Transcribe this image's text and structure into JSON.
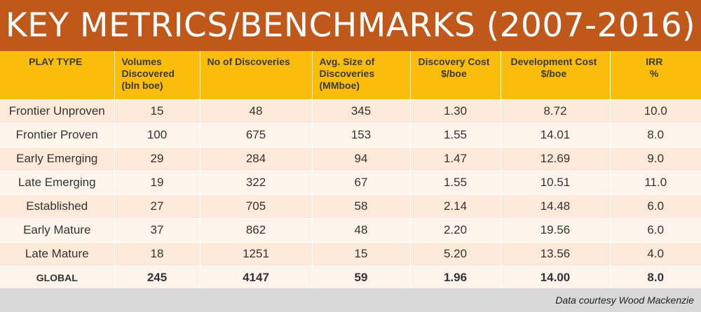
{
  "title": "KEY METRICS/BENCHMARKS (2007-2016)",
  "headers": [
    [
      "PLAY TYPE"
    ],
    [
      "Volumes",
      "Discovered",
      "(bln boe)"
    ],
    [
      "No of Discoveries"
    ],
    [
      "Avg. Size of",
      "Discoveries",
      "(MMboe)"
    ],
    [
      "Discovery Cost",
      "$/boe"
    ],
    [
      "Development Cost",
      "$/boe"
    ],
    [
      "IRR",
      "%"
    ]
  ],
  "rows": [
    [
      "Frontier Unproven",
      "15",
      "48",
      "345",
      "1.30",
      "8.72",
      "10.0"
    ],
    [
      "Frontier Proven",
      "100",
      "675",
      "153",
      "1.55",
      "14.01",
      "8.0"
    ],
    [
      "Early Emerging",
      "29",
      "284",
      "94",
      "1.47",
      "12.69",
      "9.0"
    ],
    [
      "Late Emerging",
      "19",
      "322",
      "67",
      "1.55",
      "10.51",
      "11.0"
    ],
    [
      "Established",
      "27",
      "705",
      "58",
      "2.14",
      "14.48",
      "6.0"
    ],
    [
      "Early Mature",
      "37",
      "862",
      "48",
      "2.20",
      "19.56",
      "6.0"
    ],
    [
      "Late Mature",
      "18",
      "1251",
      "15",
      "5.20",
      "13.56",
      "4.0"
    ]
  ],
  "global": [
    "GLOBAL",
    "245",
    "4147",
    "59",
    "1.96",
    "14.00",
    "8.0"
  ],
  "footer": "Data courtesy Wood Mackenzie",
  "colors": {
    "title_bg": "#c0581b",
    "header_bg": "#fbbd0c",
    "row_odd": "#fde9d8",
    "row_even": "#fdf4ec",
    "footer_bg": "#d8d8d8"
  }
}
